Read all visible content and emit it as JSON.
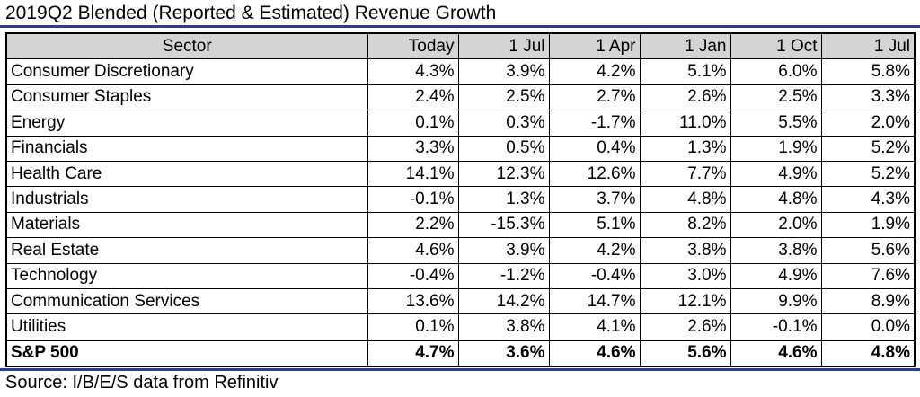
{
  "title": "2019Q2 Blended (Reported & Estimated) Revenue Growth",
  "table": {
    "headers": [
      "Sector",
      "Today",
      "1 Jul",
      "1 Apr",
      "1 Jan",
      "1 Oct",
      "1 Jul"
    ],
    "rows": [
      {
        "sector": "Consumer Discretionary",
        "values": [
          "4.3%",
          "3.9%",
          "4.2%",
          "5.1%",
          "6.0%",
          "5.8%"
        ]
      },
      {
        "sector": "Consumer Staples",
        "values": [
          "2.4%",
          "2.5%",
          "2.7%",
          "2.6%",
          "2.5%",
          "3.3%"
        ]
      },
      {
        "sector": "Energy",
        "values": [
          "0.1%",
          "0.3%",
          "-1.7%",
          "11.0%",
          "5.5%",
          "2.0%"
        ]
      },
      {
        "sector": "Financials",
        "values": [
          "3.3%",
          "0.5%",
          "0.4%",
          "1.3%",
          "1.9%",
          "5.2%"
        ]
      },
      {
        "sector": "Health Care",
        "values": [
          "14.1%",
          "12.3%",
          "12.6%",
          "7.7%",
          "4.9%",
          "5.2%"
        ]
      },
      {
        "sector": "Industrials",
        "values": [
          "-0.1%",
          "1.3%",
          "3.7%",
          "4.8%",
          "4.8%",
          "4.3%"
        ]
      },
      {
        "sector": "Materials",
        "values": [
          "2.2%",
          "-15.3%",
          "5.1%",
          "8.2%",
          "2.0%",
          "1.9%"
        ]
      },
      {
        "sector": "Real Estate",
        "values": [
          "4.6%",
          "3.9%",
          "4.2%",
          "3.8%",
          "3.8%",
          "5.6%"
        ]
      },
      {
        "sector": "Technology",
        "values": [
          "-0.4%",
          "-1.2%",
          "-0.4%",
          "3.0%",
          "4.9%",
          "7.6%"
        ]
      },
      {
        "sector": "Communication Services",
        "values": [
          "13.6%",
          "14.2%",
          "14.7%",
          "12.1%",
          "9.9%",
          "8.9%"
        ]
      },
      {
        "sector": "Utilities",
        "values": [
          "0.1%",
          "3.8%",
          "4.1%",
          "2.6%",
          "-0.1%",
          "0.0%"
        ]
      }
    ],
    "total": {
      "sector": "S&P 500",
      "values": [
        "4.7%",
        "3.6%",
        "4.6%",
        "5.6%",
        "4.6%",
        "4.8%"
      ]
    }
  },
  "source": "Source: I/B/E/S data from Refinitiv",
  "colors": {
    "header_fill": "#d4d4d4",
    "rule": "#2e3a9c"
  }
}
